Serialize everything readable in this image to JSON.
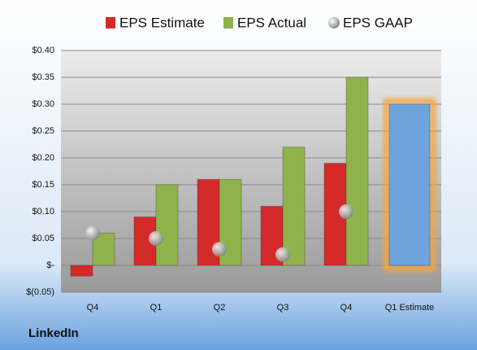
{
  "chart_data": {
    "type": "bar",
    "categories": [
      "Q4",
      "Q1",
      "Q2",
      "Q3",
      "Q4",
      "Q1 Estimate"
    ],
    "series": [
      {
        "name": "EPS Estimate",
        "color": "#d42a2a",
        "values": [
          -0.02,
          0.09,
          0.16,
          0.11,
          0.19,
          0.3
        ]
      },
      {
        "name": "EPS Actual",
        "color": "#8fb34a",
        "values": [
          0.06,
          0.15,
          0.16,
          0.22,
          0.35,
          null
        ]
      },
      {
        "name": "EPS GAAP",
        "color": "#a0a4a8",
        "marker": "circle",
        "values": [
          0.06,
          0.05,
          0.03,
          0.02,
          0.1,
          null
        ]
      }
    ],
    "highlight": {
      "index": 5,
      "color": "#6fa3dc",
      "glow": "#f6a53c"
    },
    "ylim": [
      -0.05,
      0.4
    ],
    "yticks": [
      {
        "value": -0.05,
        "label": "$(0.05)"
      },
      {
        "value": 0,
        "label": "$-"
      },
      {
        "value": 0.05,
        "label": "$0.05"
      },
      {
        "value": 0.1,
        "label": "$0.10"
      },
      {
        "value": 0.15,
        "label": "$0.15"
      },
      {
        "value": 0.2,
        "label": "$0.20"
      },
      {
        "value": 0.25,
        "label": "$0.25"
      },
      {
        "value": 0.3,
        "label": "$0.30"
      },
      {
        "value": 0.35,
        "label": "$0.35"
      },
      {
        "value": 0.4,
        "label": "$0.40"
      }
    ],
    "grid": true,
    "footer": "LinkedIn"
  }
}
